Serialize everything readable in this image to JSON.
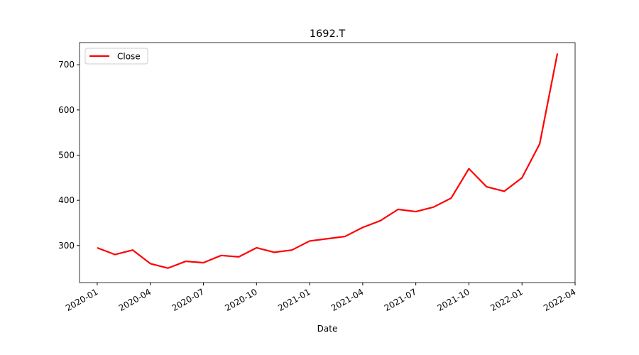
{
  "chart_data": {
    "type": "line",
    "title": "1692.T",
    "xlabel": "Date",
    "x": [
      "2020-01",
      "2020-02",
      "2020-03",
      "2020-04",
      "2020-05",
      "2020-06",
      "2020-07",
      "2020-08",
      "2020-09",
      "2020-10",
      "2020-11",
      "2020-12",
      "2021-01",
      "2021-02",
      "2021-03",
      "2021-04",
      "2021-05",
      "2021-06",
      "2021-07",
      "2021-08",
      "2021-09",
      "2021-10",
      "2021-11",
      "2021-12",
      "2022-01",
      "2022-02",
      "2022-03"
    ],
    "series": [
      {
        "name": "Close",
        "color": "#ff0000",
        "values": [
          295,
          280,
          290,
          260,
          250,
          265,
          262,
          278,
          275,
          295,
          285,
          290,
          310,
          315,
          320,
          340,
          355,
          380,
          375,
          385,
          405,
          470,
          430,
          420,
          450,
          525,
          725
        ]
      }
    ],
    "xlim": [
      "2019-12",
      "2022-04"
    ],
    "xticks": [
      "2020-01",
      "2020-04",
      "2020-07",
      "2020-10",
      "2021-01",
      "2021-04",
      "2021-07",
      "2021-10",
      "2022-01",
      "2022-04"
    ],
    "ylim": [
      218,
      749
    ],
    "yticks": [
      300,
      400,
      500,
      600,
      700
    ],
    "legend": "upper left",
    "grid": false
  }
}
